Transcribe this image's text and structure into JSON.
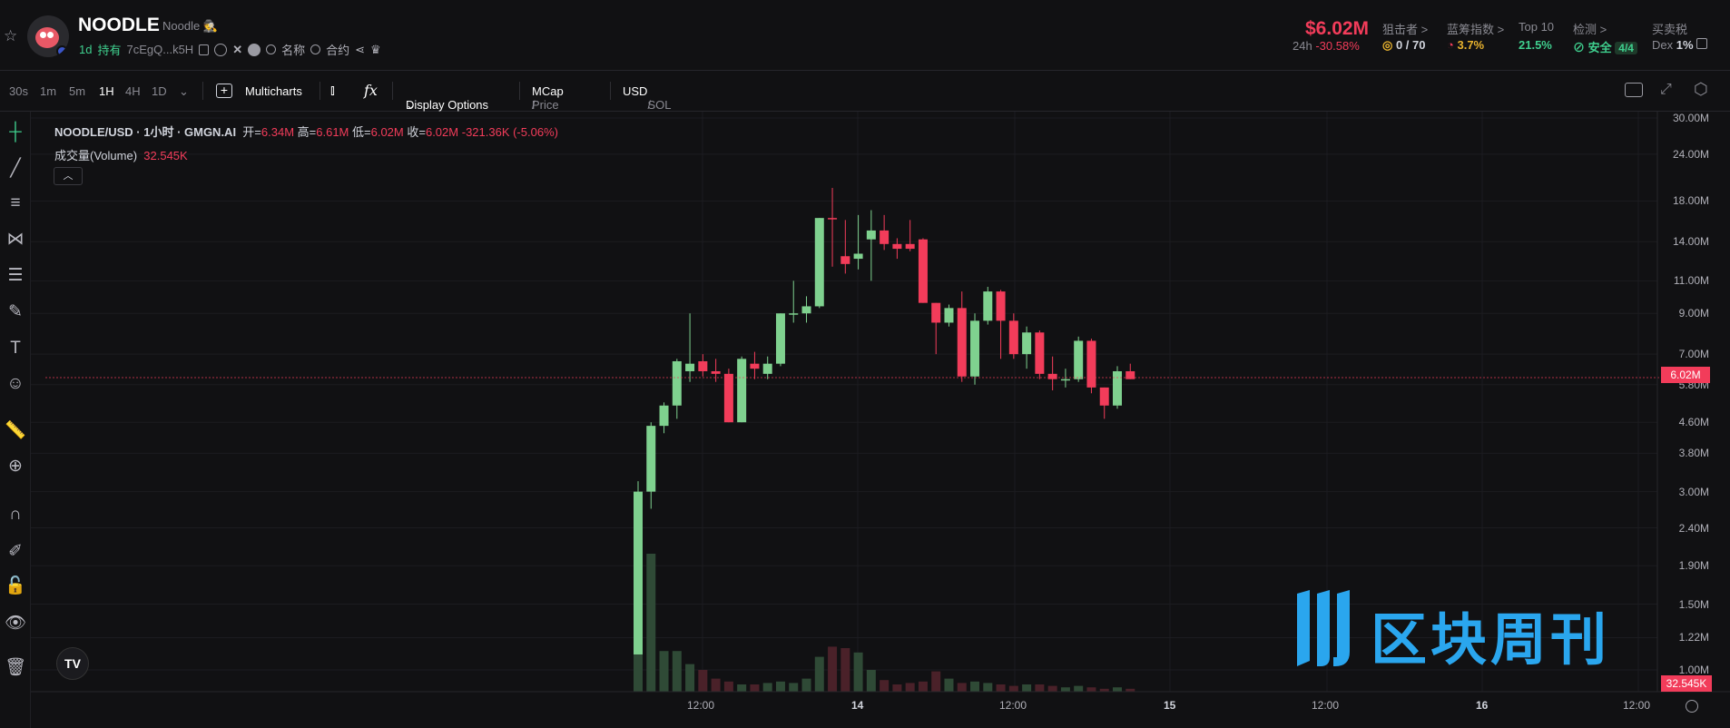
{
  "token": {
    "symbol": "NOODLE",
    "name": "Noodle",
    "age": "1d",
    "holders_label": "持有",
    "address": "7cEgQ...k5H",
    "name_search": "名称",
    "contract_search": "合约"
  },
  "header_stats": {
    "market_cap": "$6.02M",
    "period": "24h",
    "change": "-30.58%",
    "sniper_label": "狙击者 >",
    "sniper_value": "0 / 70",
    "bluechip_label": "蓝筹指数 >",
    "bluechip_value": "3.7%",
    "top10_label": "Top 10",
    "top10_value": "21.5%",
    "detect_label": "检测 >",
    "detect_value": "安全",
    "detect_score": "4/4",
    "tax_label": "买卖税",
    "tax_dex": "Dex",
    "tax_value": "1%"
  },
  "toolbar": {
    "intervals": [
      "30s",
      "1m",
      "5m",
      "1H",
      "4H",
      "1D"
    ],
    "active_interval": "1H",
    "multicharts": "Multicharts",
    "fx": "fx",
    "display_options": "Display Options",
    "price": "Price",
    "mcap": "MCap",
    "slash": "/",
    "usd": "USD",
    "sol": "SOL"
  },
  "legend": {
    "pair": "NOODLE/USD · 1小时 · GMGN.AI",
    "open_label": "开=",
    "open": "6.34M",
    "high_label": "高=",
    "high": "6.61M",
    "low_label": "低=",
    "low": "6.02M",
    "close_label": "收=",
    "close": "6.02M",
    "change": "-321.36K (-5.06%)",
    "volume_label": "成交量(Volume)",
    "volume": "32.545K"
  },
  "chart_data": {
    "type": "candlestick",
    "interval": "1H",
    "scale": "log",
    "y_ticks": [
      "30.00M",
      "24.00M",
      "18.00M",
      "14.00M",
      "11.00M",
      "9.00M",
      "7.00M",
      "5.80M",
      "4.60M",
      "3.80M",
      "3.00M",
      "2.40M",
      "1.90M",
      "1.50M",
      "1.22M",
      "1.00M"
    ],
    "x_ticks": [
      "12:00",
      "14",
      "12:00",
      "15",
      "12:00",
      "16",
      "12:00"
    ],
    "current_price": "6.02M",
    "current_volume": "32.545K",
    "candles": [
      {
        "o": 1.1,
        "h": 3.2,
        "l": 1.1,
        "c": 3.0
      },
      {
        "o": 3.0,
        "h": 4.6,
        "l": 2.7,
        "c": 4.5
      },
      {
        "o": 4.5,
        "h": 5.2,
        "l": 4.3,
        "c": 5.1
      },
      {
        "o": 5.1,
        "h": 6.8,
        "l": 4.7,
        "c": 6.7
      },
      {
        "o": 6.3,
        "h": 9.0,
        "l": 5.9,
        "c": 6.6
      },
      {
        "o": 6.7,
        "h": 7.0,
        "l": 6.1,
        "c": 6.3
      },
      {
        "o": 6.3,
        "h": 6.8,
        "l": 5.9,
        "c": 6.2
      },
      {
        "o": 6.2,
        "h": 6.4,
        "l": 4.6,
        "c": 4.6
      },
      {
        "o": 4.6,
        "h": 6.9,
        "l": 4.6,
        "c": 6.8
      },
      {
        "o": 6.6,
        "h": 7.1,
        "l": 6.0,
        "c": 6.4
      },
      {
        "o": 6.2,
        "h": 6.9,
        "l": 6.0,
        "c": 6.6
      },
      {
        "o": 6.6,
        "h": 9.0,
        "l": 6.5,
        "c": 9.0
      },
      {
        "o": 9.0,
        "h": 11.0,
        "l": 8.5,
        "c": 9.0
      },
      {
        "o": 9.0,
        "h": 10.0,
        "l": 8.5,
        "c": 9.4
      },
      {
        "o": 9.4,
        "h": 16.2,
        "l": 9.3,
        "c": 16.2
      },
      {
        "o": 16.2,
        "h": 19.5,
        "l": 12.0,
        "c": 16.1
      },
      {
        "o": 12.8,
        "h": 16.0,
        "l": 11.5,
        "c": 12.2
      },
      {
        "o": 12.6,
        "h": 16.5,
        "l": 11.8,
        "c": 13.0
      },
      {
        "o": 14.2,
        "h": 17.0,
        "l": 11.0,
        "c": 15.0
      },
      {
        "o": 15.0,
        "h": 16.5,
        "l": 13.3,
        "c": 13.8
      },
      {
        "o": 13.8,
        "h": 14.3,
        "l": 12.6,
        "c": 13.4
      },
      {
        "o": 13.8,
        "h": 16.0,
        "l": 13.2,
        "c": 13.4
      },
      {
        "o": 14.2,
        "h": 14.3,
        "l": 9.6,
        "c": 9.6
      },
      {
        "o": 9.6,
        "h": 9.6,
        "l": 7.0,
        "c": 8.5
      },
      {
        "o": 8.5,
        "h": 9.5,
        "l": 8.3,
        "c": 9.3
      },
      {
        "o": 9.3,
        "h": 10.3,
        "l": 5.9,
        "c": 6.1
      },
      {
        "o": 6.1,
        "h": 9.0,
        "l": 5.8,
        "c": 8.6
      },
      {
        "o": 8.6,
        "h": 10.6,
        "l": 8.4,
        "c": 10.3
      },
      {
        "o": 10.3,
        "h": 10.4,
        "l": 6.8,
        "c": 8.6
      },
      {
        "o": 8.6,
        "h": 9.0,
        "l": 6.8,
        "c": 7.0
      },
      {
        "o": 7.0,
        "h": 8.3,
        "l": 6.4,
        "c": 8.0
      },
      {
        "o": 8.0,
        "h": 8.1,
        "l": 6.0,
        "c": 6.2
      },
      {
        "o": 6.2,
        "h": 6.9,
        "l": 5.6,
        "c": 6.0
      },
      {
        "o": 6.0,
        "h": 6.4,
        "l": 5.7,
        "c": 6.0
      },
      {
        "o": 6.0,
        "h": 7.8,
        "l": 5.9,
        "c": 7.6
      },
      {
        "o": 7.6,
        "h": 7.7,
        "l": 5.5,
        "c": 5.7
      },
      {
        "o": 5.7,
        "h": 5.7,
        "l": 4.7,
        "c": 5.1
      },
      {
        "o": 5.1,
        "h": 6.5,
        "l": 5.0,
        "c": 6.3
      },
      {
        "o": 6.3,
        "h": 6.6,
        "l": 6.0,
        "c": 6.0
      }
    ],
    "volumes": [
      1.0,
      0.95,
      0.28,
      0.28,
      0.19,
      0.15,
      0.09,
      0.07,
      0.05,
      0.05,
      0.06,
      0.07,
      0.06,
      0.09,
      0.24,
      0.31,
      0.3,
      0.27,
      0.15,
      0.08,
      0.05,
      0.06,
      0.07,
      0.14,
      0.09,
      0.06,
      0.07,
      0.06,
      0.05,
      0.04,
      0.05,
      0.05,
      0.04,
      0.03,
      0.04,
      0.03,
      0.02,
      0.03,
      0.02
    ]
  },
  "watermark": {
    "text": "区块周刊",
    "color": "#2aa6ee"
  },
  "colors": {
    "up": "#7fd18f",
    "down": "#f23c5a",
    "background": "#111113"
  },
  "icons": {
    "tv_logo": "TV"
  }
}
